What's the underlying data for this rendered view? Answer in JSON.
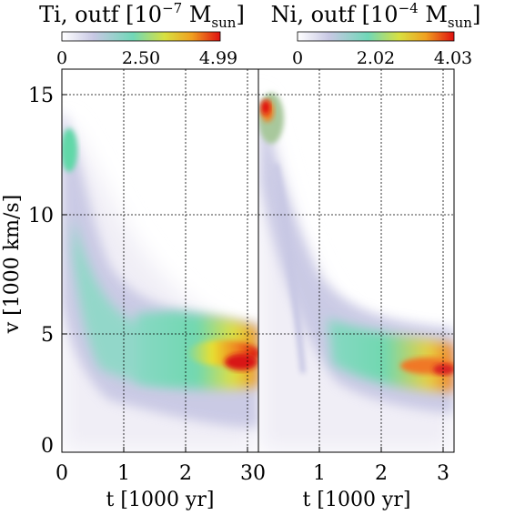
{
  "figure": {
    "ylabel": "v [1000 km/s]",
    "yticks": [
      "0",
      "5",
      "10",
      "15"
    ]
  },
  "chart_data": [
    {
      "type": "heatmap",
      "title": {
        "main": "Ti, outf [10",
        "exp": "−7",
        "mid": " M",
        "sub": "sun",
        "end": "]"
      },
      "colorbar": {
        "ticks": [
          "0",
          "2.50",
          "4.99"
        ],
        "range": [
          0,
          4.99
        ],
        "colors": [
          "#ffffff",
          "#b8b8dc",
          "#68d8b0",
          "#e0e030",
          "#f08020",
          "#e01010"
        ]
      },
      "xlabel": "t [1000 yr]",
      "xticks": [
        "0",
        "1",
        "2",
        "3"
      ],
      "xlim": [
        0,
        3.2
      ],
      "ylim": [
        0,
        16
      ],
      "grid": true,
      "x_gridlines": [
        1,
        2,
        3
      ],
      "y_gridlines": [
        5,
        10,
        15
      ],
      "regions": [
        {
          "t": [
            0,
            0.5
          ],
          "v": [
            11.5,
            14
          ],
          "level": 0.45
        },
        {
          "t": [
            0.2,
            1.2
          ],
          "v": [
            3,
            10
          ],
          "level": 0.3
        },
        {
          "t": [
            1,
            2
          ],
          "v": [
            2.5,
            5.5
          ],
          "level": 0.4
        },
        {
          "t": [
            2,
            3.2
          ],
          "v": [
            3,
            5.2
          ],
          "level": 0.75
        },
        {
          "t": [
            2.6,
            3.2
          ],
          "v": [
            3.3,
            4.3
          ],
          "level": 1.0
        }
      ]
    },
    {
      "type": "heatmap",
      "title": {
        "main": "Ni, outf [10",
        "exp": "−4",
        "mid": " M",
        "sub": "sun",
        "end": "]"
      },
      "colorbar": {
        "ticks": [
          "0",
          "2.02",
          "4.03"
        ],
        "range": [
          0,
          4.03
        ],
        "colors": [
          "#ffffff",
          "#b8b8dc",
          "#68d8b0",
          "#e0e030",
          "#f08020",
          "#e01010"
        ]
      },
      "xlabel": "t [1000 yr]",
      "xticks": [
        "1",
        "2",
        "3"
      ],
      "xlim": [
        0,
        3.2
      ],
      "ylim": [
        0,
        16
      ],
      "grid": true,
      "x_gridlines": [
        1,
        2,
        3
      ],
      "y_gridlines": [
        5,
        10,
        15
      ],
      "regions": [
        {
          "t": [
            0,
            0.3
          ],
          "v": [
            12.5,
            15
          ],
          "level": 1.0
        },
        {
          "t": [
            0.3,
            1.3
          ],
          "v": [
            3,
            12
          ],
          "level": 0.25
        },
        {
          "t": [
            1.3,
            2.3
          ],
          "v": [
            3,
            5
          ],
          "level": 0.45
        },
        {
          "t": [
            2.3,
            3.2
          ],
          "v": [
            3,
            4.4
          ],
          "level": 0.7
        }
      ]
    }
  ]
}
